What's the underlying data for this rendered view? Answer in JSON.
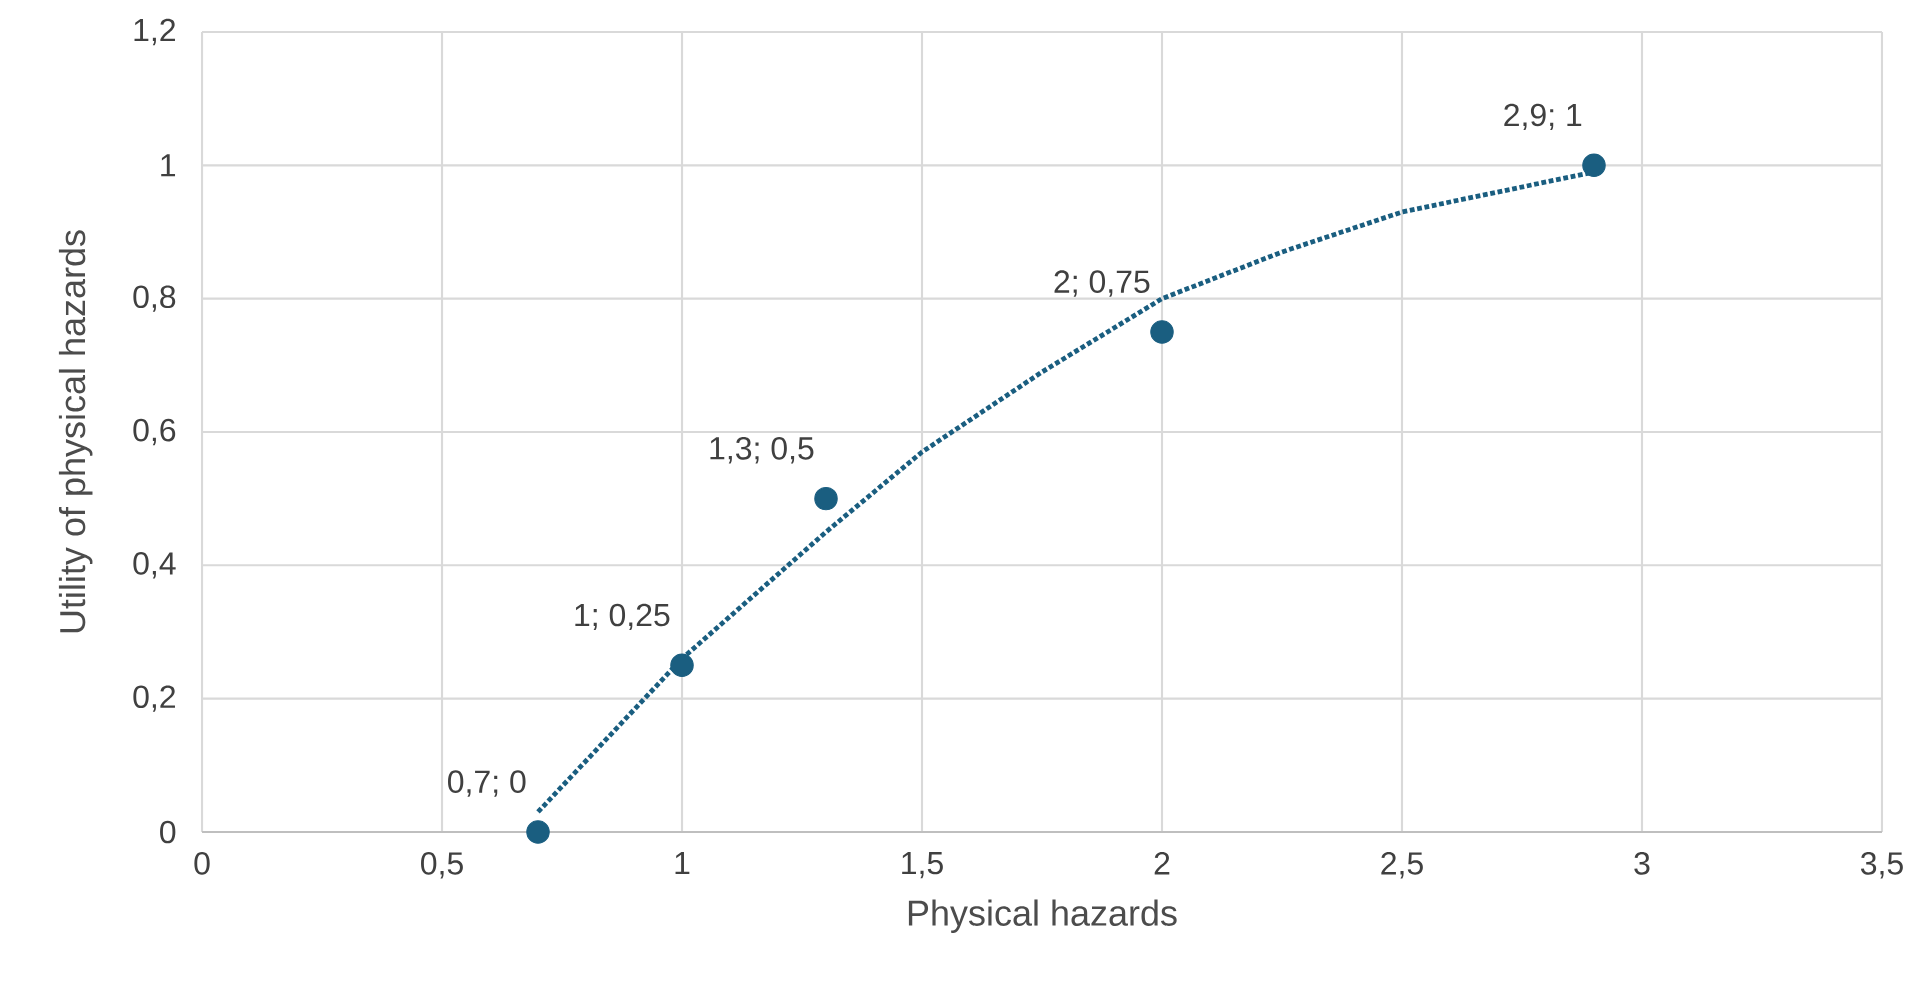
{
  "chart_data": {
    "type": "scatter",
    "xlabel": "Physical hazards",
    "ylabel": "Utility of physical hazards",
    "grid": true,
    "xlim": [
      0,
      3.5
    ],
    "ylim": [
      0,
      1.2
    ],
    "xticks": [
      0,
      {
        "value": 0.5,
        "label": "0,5"
      },
      1,
      {
        "value": 1.5,
        "label": "1,5"
      },
      2,
      {
        "value": 2.5,
        "label": "2,5"
      },
      3,
      {
        "value": 3.5,
        "label": "3,5"
      }
    ],
    "yticks": [
      0,
      {
        "value": 0.2,
        "label": "0,2"
      },
      {
        "value": 0.4,
        "label": "0,4"
      },
      {
        "value": 0.6,
        "label": "0,6"
      },
      {
        "value": 0.8,
        "label": "0,8"
      },
      1,
      {
        "value": 1.2,
        "label": "1,2"
      }
    ],
    "series": [
      {
        "color": "#1a5e80",
        "marker": "circle",
        "x": [
          0.7,
          1,
          1.3,
          2,
          2.9
        ],
        "values": [
          0,
          0.25,
          0.5,
          0.75,
          1
        ],
        "value_labels": [
          "0,7; 0",
          "1; 0,25",
          "1,3; 0,5",
          "2; 0,75",
          "2,9; 1"
        ]
      },
      {
        "type": "line",
        "color": "#1a5e80",
        "marker": "none",
        "line_style": "dotted",
        "x": [
          0.7,
          1,
          1.3,
          1.5,
          1.75,
          2,
          2.25,
          2.5,
          2.9
        ],
        "values": [
          0.03,
          0.26,
          0.45,
          0.57,
          0.69,
          0.8,
          0.87,
          0.93,
          0.99
        ]
      }
    ]
  }
}
